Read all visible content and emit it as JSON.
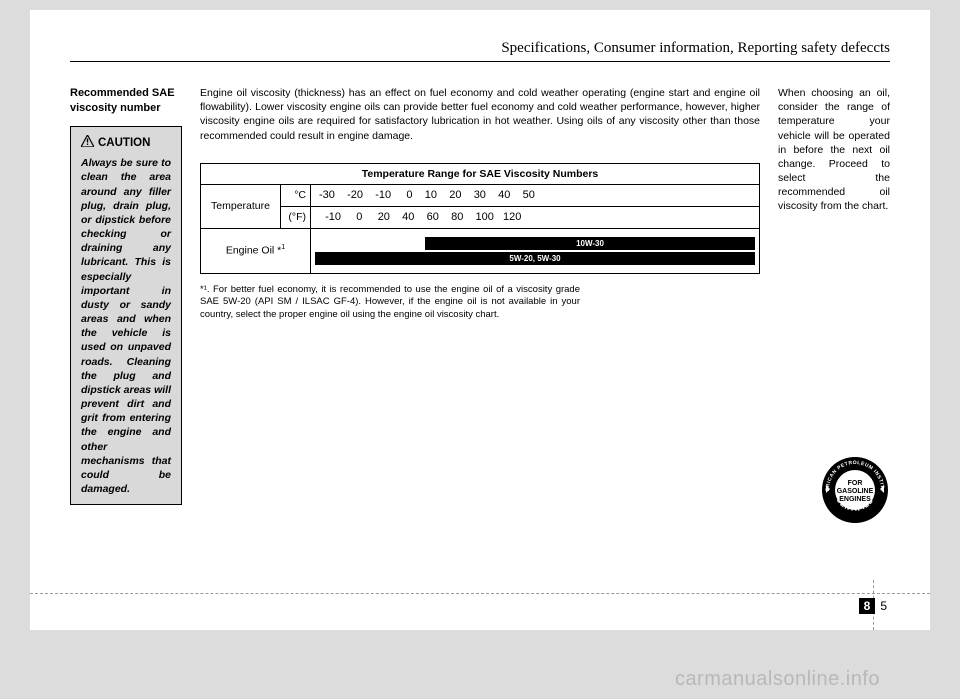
{
  "header": "Specifications, Consumer information, Reporting safety defeccts",
  "section_title": "Recommended SAE viscosity number",
  "caution": {
    "label": "CAUTION",
    "body": "Always be sure to clean the area around any filler plug, drain plug, or dipstick before checking or draining any lubricant. This is especially important in dusty or sandy areas and when the vehicle is used on unpaved roads. Cleaning the plug and dipstick areas will prevent dirt and grit from entering the engine and other mechanisms that could be damaged."
  },
  "col2_text": "Engine oil viscosity (thickness) has an effect on fuel economy and cold weather operating (engine start and engine oil flowability). Lower viscosity engine oils can provide better fuel economy and cold weather performance, however, higher viscosity engine oils are required for satisfactory lubrication in hot weather. Using oils of any viscosity other than those recommended could result in engine damage.",
  "col3_text": "When choosing an oil, consider the range of temperature your vehicle will be operated in before the next oil change. Proceed to select the recommended oil viscosity from the chart.",
  "chart": {
    "title": "Temperature Range for SAE Viscosity Numbers",
    "temp_label": "Temperature",
    "unit_c": "°C",
    "unit_f": "(°F)",
    "scale_c": "-30    -20    -10     0    10    20    30    40    50",
    "scale_f": "  -10     0     20    40    60    80    100   120",
    "oil_label": "Engine Oil *",
    "bars": [
      {
        "label": "10W-30",
        "left_pct": 25,
        "width_pct": 75
      },
      {
        "label": "5W-20, 5W-30",
        "left_pct": 0,
        "width_pct": 100
      }
    ]
  },
  "footnote": "*¹. For better fuel economy, it is recommended to use the engine oil of a viscosity grade SAE 5W-20 (API SM / ILSAC GF-4). However, if the engine oil is not available in your country, select the proper engine oil using the engine oil viscosity chart.",
  "api_seal": {
    "outer_top": "AMERICAN PETROLEUM INSTITUTE",
    "outer_bottom": "CERTIFIED",
    "inner": "FOR\nGASOLINE\nENGINES"
  },
  "page_section": "8",
  "page_number": "5",
  "watermark": "carmanualsonline.info"
}
